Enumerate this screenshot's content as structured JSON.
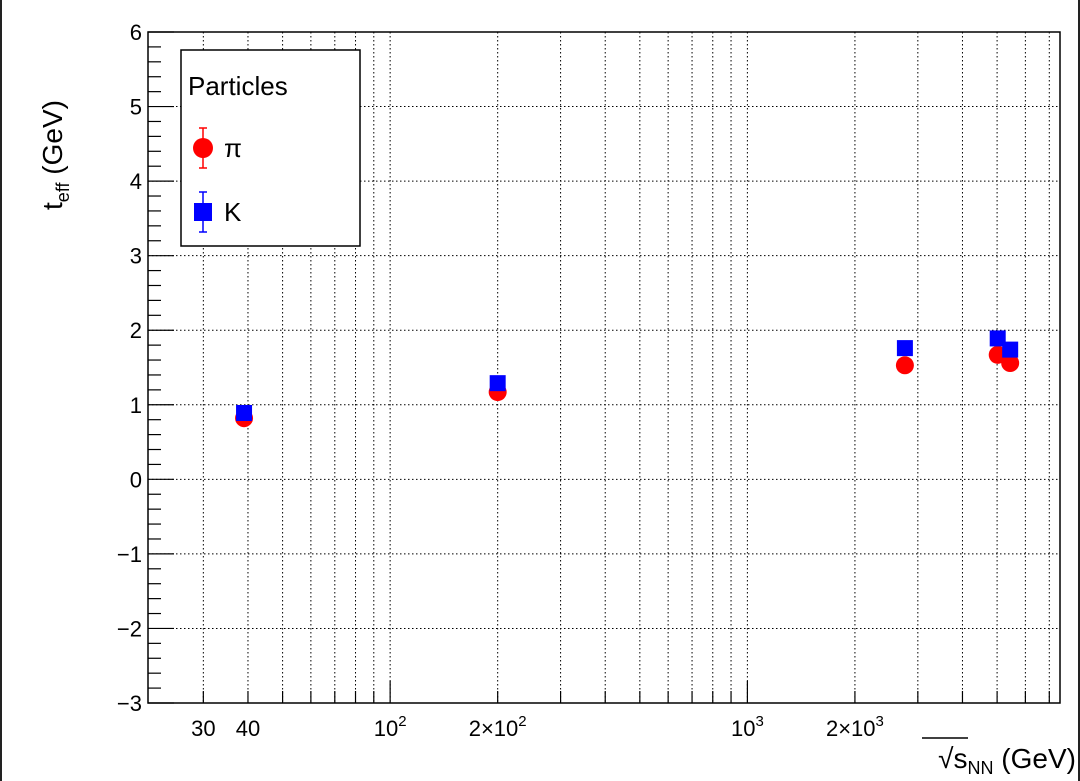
{
  "chart_data": {
    "type": "scatter",
    "xscale": "log",
    "xlim": [
      21,
      7500
    ],
    "ylim": [
      -3,
      6
    ],
    "grid": true,
    "legend_position": "top-left",
    "xlabel_main": "√s",
    "xlabel_sub": "NN",
    "xlabel_unit": " (GeV)",
    "ylabel_main": "t",
    "ylabel_sub": "eff",
    "ylabel_unit": " (GeV)",
    "x_tick_labels": [
      {
        "value": 30,
        "label": "30"
      },
      {
        "value": 40,
        "label": "40"
      },
      {
        "value": 100,
        "label": "10",
        "sup": "2"
      },
      {
        "value": 200,
        "label": "2×10",
        "sup": "2"
      },
      {
        "value": 1000,
        "label": "10",
        "sup": "3"
      },
      {
        "value": 2000,
        "label": "2×10",
        "sup": "3"
      }
    ],
    "y_ticks": [
      -3,
      -2,
      -1,
      0,
      1,
      2,
      3,
      4,
      5,
      6
    ],
    "y_tick_labels": [
      "−3",
      "−2",
      "−1",
      "0",
      "1",
      "2",
      "3",
      "4",
      "5",
      "6"
    ],
    "legend_title": "Particles",
    "series": [
      {
        "name": "π",
        "marker": "circle",
        "color": "#ff0000",
        "points": [
          {
            "x": 39,
            "y": 0.82
          },
          {
            "x": 200,
            "y": 1.17
          },
          {
            "x": 2760,
            "y": 1.53
          },
          {
            "x": 5020,
            "y": 1.67
          },
          {
            "x": 5440,
            "y": 1.56
          }
        ]
      },
      {
        "name": "K",
        "marker": "square",
        "color": "#0000ff",
        "points": [
          {
            "x": 39,
            "y": 0.89
          },
          {
            "x": 200,
            "y": 1.29
          },
          {
            "x": 2760,
            "y": 1.76
          },
          {
            "x": 5020,
            "y": 1.89
          },
          {
            "x": 5440,
            "y": 1.74
          }
        ]
      }
    ]
  }
}
